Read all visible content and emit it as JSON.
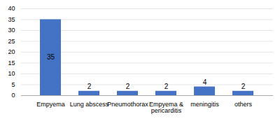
{
  "chart_data": {
    "type": "bar",
    "categories": [
      "Empyema",
      "Lung abscess",
      "Pneumothorax",
      "Empyema &\npericarditis",
      "meningitis",
      "others"
    ],
    "values": [
      35,
      2,
      2,
      2,
      4,
      2
    ],
    "color": "#4472C4",
    "ylim": [
      0,
      40
    ],
    "yticks": [
      0,
      5,
      10,
      15,
      20,
      25,
      30,
      35,
      40
    ],
    "grid": true,
    "data_labels": true
  }
}
